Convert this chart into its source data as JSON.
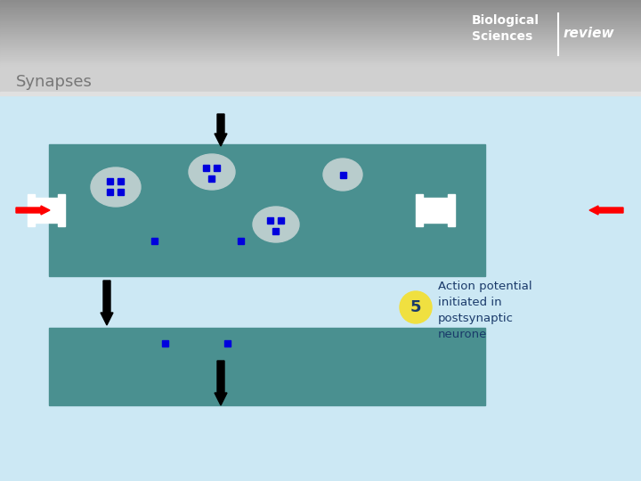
{
  "title": "Synapses",
  "background_color": "#cce8f4",
  "teal_color": "#4a9090",
  "blue_square_color": "#0000dd",
  "vesicle_color": "#b8cccc",
  "annotation_text_lines": [
    "Action potential",
    "initiated in",
    "postsynaptic",
    "neurone"
  ],
  "annotation_color": "#1a3a6a",
  "step_number": "5",
  "step_bg": "#f0e040",
  "step_text_color": "#1a3a6a",
  "fig_w": 7.2,
  "fig_h": 5.4,
  "dpi": 100
}
